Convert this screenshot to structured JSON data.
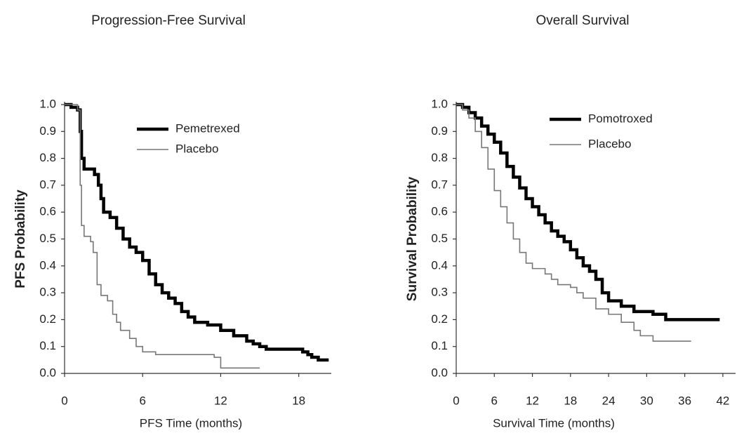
{
  "chart_data": [
    {
      "type": "step",
      "title": "Progression-Free Survival",
      "xlabel": "PFS Time (months)",
      "ylabel": "PFS Probability",
      "xlim": [
        0,
        20.5
      ],
      "ylim": [
        0,
        1
      ],
      "xticks": [
        0,
        6,
        12,
        18
      ],
      "yticks": [
        {
          "value": 0,
          "label": "0.0"
        },
        0.1,
        0.2,
        0.3,
        0.4,
        0.5,
        0.6,
        0.7,
        0.8,
        0.9,
        {
          "value": 1,
          "label": "1.0"
        }
      ],
      "series": [
        {
          "name": "Pemetrexed",
          "color": "#000000",
          "x": [
            0,
            0.5,
            1,
            1.2,
            1.3,
            1.5,
            2.3,
            2.6,
            2.8,
            3,
            3.5,
            4,
            4.5,
            5,
            5.5,
            6,
            6.5,
            7,
            7.5,
            8,
            8.5,
            9,
            9.5,
            10,
            11,
            12,
            13,
            14,
            14.5,
            15,
            15.5,
            18.3,
            18.7,
            19,
            19.5,
            20.3
          ],
          "values": [
            1.0,
            0.99,
            0.98,
            0.9,
            0.8,
            0.76,
            0.74,
            0.7,
            0.65,
            0.6,
            0.58,
            0.54,
            0.5,
            0.47,
            0.45,
            0.42,
            0.37,
            0.33,
            0.3,
            0.28,
            0.26,
            0.23,
            0.21,
            0.19,
            0.18,
            0.16,
            0.14,
            0.12,
            0.11,
            0.1,
            0.09,
            0.08,
            0.07,
            0.06,
            0.05,
            0.05
          ]
        },
        {
          "name": "Placebo",
          "color": "#777777",
          "x": [
            0,
            1,
            1.2,
            1.3,
            1.5,
            2,
            2.2,
            2.5,
            2.8,
            3.3,
            3.7,
            4,
            4.3,
            5,
            5.5,
            6,
            7,
            10,
            11.5,
            12,
            15
          ],
          "values": [
            1.0,
            0.98,
            0.7,
            0.55,
            0.51,
            0.49,
            0.45,
            0.33,
            0.29,
            0.27,
            0.22,
            0.19,
            0.16,
            0.13,
            0.1,
            0.08,
            0.07,
            0.07,
            0.06,
            0.02,
            0.02
          ]
        }
      ]
    },
    {
      "type": "step",
      "title": "Overall Survival",
      "xlabel": "Survival Time (months)",
      "ylabel": "Survival Probability",
      "xlim": [
        0,
        44
      ],
      "ylim": [
        0,
        1
      ],
      "xticks": [
        0,
        6,
        12,
        18,
        24,
        30,
        36,
        42
      ],
      "yticks": [
        {
          "value": 0,
          "label": "0.0"
        },
        0.1,
        0.2,
        0.3,
        0.4,
        0.5,
        0.6,
        0.7,
        0.8,
        0.9,
        {
          "value": 1,
          "label": "1.0"
        }
      ],
      "series": [
        {
          "name": "Pomotroxed",
          "color": "#000000",
          "x": [
            0,
            1,
            2,
            3,
            4,
            5,
            6,
            7,
            8,
            9,
            10,
            11,
            12,
            13,
            14,
            15,
            16,
            17,
            18,
            19,
            20,
            21,
            22,
            23,
            24,
            26,
            28,
            31,
            33,
            41.5
          ],
          "values": [
            1.0,
            0.99,
            0.97,
            0.95,
            0.92,
            0.89,
            0.86,
            0.82,
            0.77,
            0.73,
            0.69,
            0.65,
            0.62,
            0.59,
            0.56,
            0.53,
            0.51,
            0.49,
            0.46,
            0.43,
            0.4,
            0.38,
            0.35,
            0.3,
            0.27,
            0.25,
            0.23,
            0.22,
            0.2,
            0.2
          ]
        },
        {
          "name": "Placebo",
          "color": "#777777",
          "x": [
            0,
            1,
            2,
            3,
            4,
            5,
            6,
            7,
            8,
            9,
            10,
            11,
            12,
            14,
            15,
            16,
            18,
            19,
            20,
            22,
            24,
            26,
            28,
            29,
            31,
            37
          ],
          "values": [
            1.0,
            0.98,
            0.95,
            0.9,
            0.84,
            0.76,
            0.68,
            0.62,
            0.56,
            0.5,
            0.45,
            0.41,
            0.39,
            0.37,
            0.35,
            0.33,
            0.32,
            0.3,
            0.28,
            0.24,
            0.22,
            0.19,
            0.16,
            0.14,
            0.12,
            0.12
          ]
        }
      ]
    }
  ]
}
